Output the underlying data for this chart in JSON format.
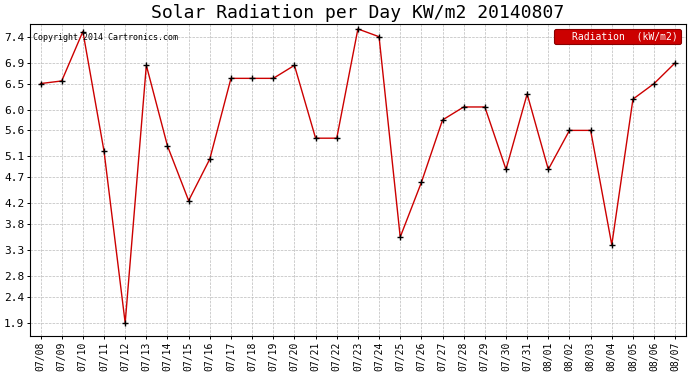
{
  "title": "Solar Radiation per Day KW/m2 20140807",
  "copyright": "Copyright 2014 Cartronics.com",
  "legend_label": "Radiation  (kW/m2)",
  "dates": [
    "07/08",
    "07/09",
    "07/10",
    "07/11",
    "07/12",
    "07/13",
    "07/14",
    "07/15",
    "07/16",
    "07/17",
    "07/18",
    "07/19",
    "07/20",
    "07/21",
    "07/22",
    "07/23",
    "07/24",
    "07/25",
    "07/26",
    "07/27",
    "07/28",
    "07/29",
    "07/30",
    "07/31",
    "08/01",
    "08/02",
    "08/03",
    "08/04",
    "08/05",
    "08/06",
    "08/07"
  ],
  "values": [
    6.5,
    6.55,
    7.5,
    5.2,
    1.9,
    6.85,
    5.3,
    4.25,
    5.05,
    6.6,
    6.6,
    6.6,
    6.85,
    5.45,
    5.45,
    7.55,
    7.4,
    3.55,
    4.6,
    5.8,
    6.05,
    6.05,
    4.85,
    6.3,
    4.85,
    5.6,
    5.6,
    3.4,
    6.2,
    6.5,
    6.9
  ],
  "line_color": "#cc0000",
  "marker_color": "#000000",
  "bg_color": "#ffffff",
  "grid_color": "#bbbbbb",
  "yticks": [
    1.9,
    2.4,
    2.8,
    3.3,
    3.8,
    4.2,
    4.7,
    5.1,
    5.6,
    6.0,
    6.5,
    6.9,
    7.4
  ],
  "ymin": 1.65,
  "ymax": 7.65,
  "title_fontsize": 13,
  "tick_fontsize": 7,
  "legend_bg": "#cc0000",
  "legend_text_color": "#ffffff",
  "fig_width": 6.9,
  "fig_height": 3.75,
  "dpi": 100
}
